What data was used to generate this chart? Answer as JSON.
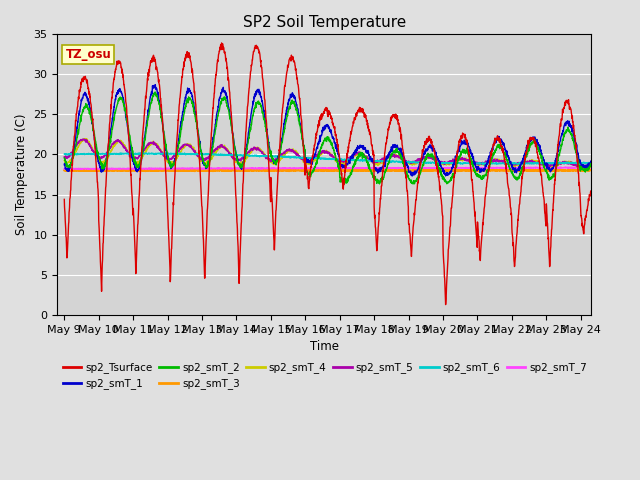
{
  "title": "SP2 Soil Temperature",
  "ylabel": "Soil Temperature (C)",
  "xlabel": "Time",
  "ylim": [
    0,
    35
  ],
  "xlim_days": [
    8.8,
    24.3
  ],
  "x_tick_labels": [
    "May 9",
    "May 10",
    "May 11",
    "May 12",
    "May 13",
    "May 14",
    "May 15",
    "May 16",
    "May 17",
    "May 18",
    "May 19",
    "May 20",
    "May 21",
    "May 22",
    "May 23",
    "May 24"
  ],
  "x_tick_positions": [
    9,
    10,
    11,
    12,
    13,
    14,
    15,
    16,
    17,
    18,
    19,
    20,
    21,
    22,
    23,
    24
  ],
  "tz_label": "TZ_osu",
  "fig_bg": "#e0e0e0",
  "plot_bg": "#d4d4d4",
  "legend": [
    {
      "label": "sp2_Tsurface",
      "color": "#dd0000"
    },
    {
      "label": "sp2_smT_1",
      "color": "#0000cc"
    },
    {
      "label": "sp2_smT_2",
      "color": "#00bb00"
    },
    {
      "label": "sp2_smT_3",
      "color": "#ff9900"
    },
    {
      "label": "sp2_smT_4",
      "color": "#cccc00"
    },
    {
      "label": "sp2_smT_5",
      "color": "#aa00aa"
    },
    {
      "label": "sp2_smT_6",
      "color": "#00cccc"
    },
    {
      "label": "sp2_smT_7",
      "color": "#ff44ff"
    }
  ]
}
